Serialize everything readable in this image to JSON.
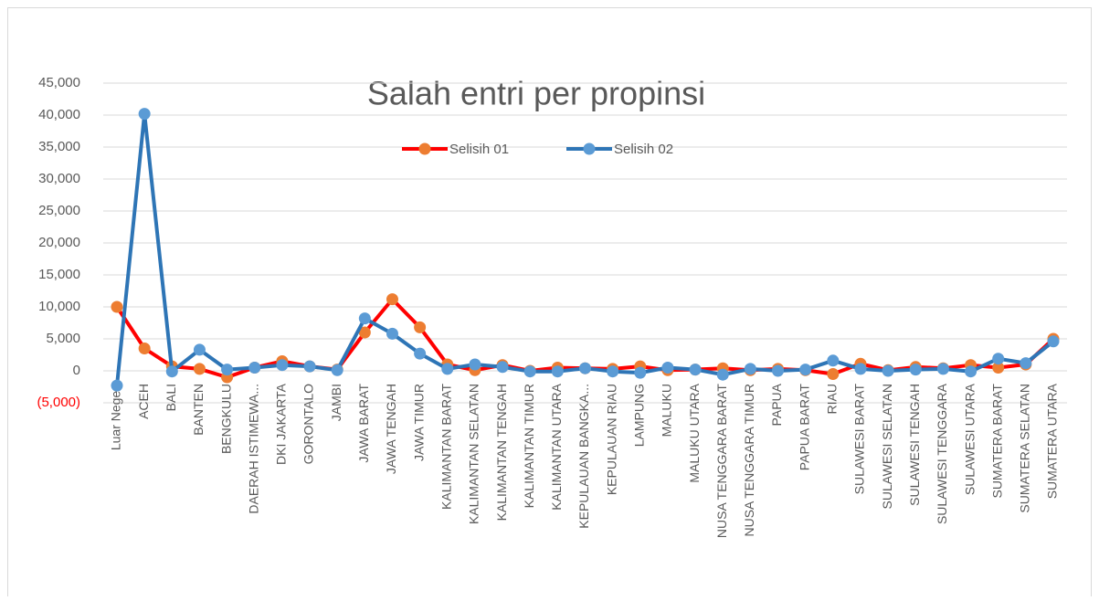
{
  "chart_data": {
    "type": "line",
    "title": "Salah entri per propinsi",
    "categories": [
      "Luar Negeri",
      "ACEH",
      "BALI",
      "BANTEN",
      "BENGKULU",
      "DAERAH ISTIMEWA...",
      "DKI JAKARTA",
      "GORONTALO",
      "JAMBI",
      "JAWA BARAT",
      "JAWA TENGAH",
      "JAWA TIMUR",
      "KALIMANTAN BARAT",
      "KALIMANTAN SELATAN",
      "KALIMANTAN TENGAH",
      "KALIMANTAN TIMUR",
      "KALIMANTAN UTARA",
      "KEPULAUAN BANGKA...",
      "KEPULAUAN RIAU",
      "LAMPUNG",
      "MALUKU",
      "MALUKU UTARA",
      "NUSA TENGGARA BARAT",
      "NUSA TENGGARA TIMUR",
      "PAPUA",
      "PAPUA BARAT",
      "RIAU",
      "SULAWESI BARAT",
      "SULAWESI SELATAN",
      "SULAWESI TENGAH",
      "SULAWESI TENGGARA",
      "SULAWESI UTARA",
      "SUMATERA BARAT",
      "SUMATERA SELATAN",
      "SUMATERA UTARA"
    ],
    "series": [
      {
        "name": "Selisih 01",
        "color": "#ff0000",
        "marker_color": "#ed7d31",
        "values": [
          10000,
          3500,
          700,
          300,
          -1000,
          500,
          1500,
          700,
          200,
          6000,
          11200,
          6800,
          1000,
          100,
          900,
          0,
          500,
          400,
          300,
          700,
          100,
          200,
          400,
          100,
          300,
          100,
          -500,
          1100,
          100,
          600,
          400,
          900,
          500,
          1000,
          5000
        ]
      },
      {
        "name": "Selisih 02",
        "color": "#2e75b6",
        "marker_color": "#5b9bd5",
        "values": [
          -2300,
          40200,
          -100,
          3300,
          200,
          500,
          900,
          700,
          100,
          8200,
          5800,
          2700,
          300,
          1000,
          600,
          -100,
          -100,
          400,
          -100,
          -300,
          500,
          200,
          -600,
          300,
          0,
          200,
          1600,
          300,
          0,
          200,
          300,
          -100,
          1900,
          1200,
          4600
        ]
      }
    ],
    "ylim": [
      -5000,
      45000
    ],
    "yticks": [
      {
        "value": -5000,
        "label": "(5,000)"
      },
      0,
      {
        "value": 5000,
        "label": "5,000"
      },
      {
        "value": 10000,
        "label": "10,000"
      },
      {
        "value": 15000,
        "label": "15,000"
      },
      {
        "value": 20000,
        "label": "20,000"
      },
      {
        "value": 25000,
        "label": "25,000"
      },
      {
        "value": 30000,
        "label": "30,000"
      },
      {
        "value": 35000,
        "label": "35,000"
      },
      {
        "value": 40000,
        "label": "40,000"
      },
      {
        "value": 45000,
        "label": "45,000"
      }
    ],
    "negative_tick_color": "#ff0000",
    "grid": true,
    "legend": "top"
  }
}
